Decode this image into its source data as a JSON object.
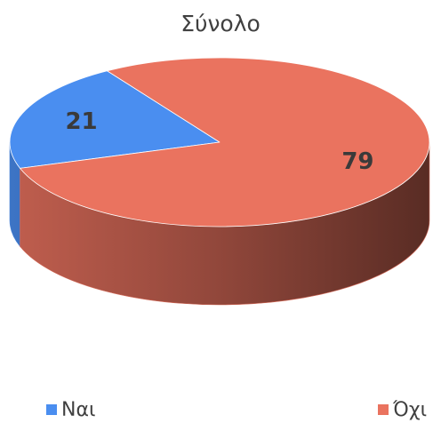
{
  "chart_data": {
    "type": "pie",
    "title": "Σύνολο",
    "categories": [
      "Ναι",
      "Όχι"
    ],
    "values": [
      21,
      79
    ],
    "colors": [
      "#4a8ef0",
      "#ea735f"
    ],
    "legend": "bottom"
  }
}
